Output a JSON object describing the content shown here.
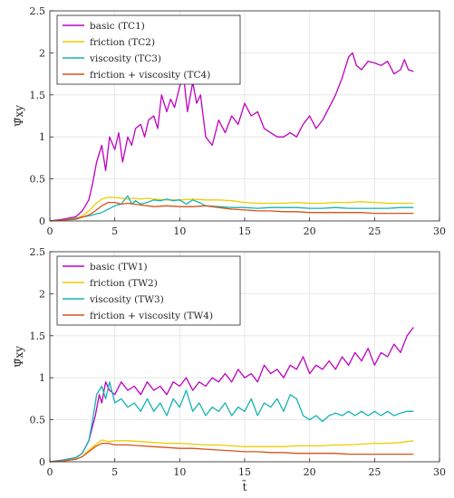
{
  "colors": {
    "basic": "#bf00bf",
    "friction": "#eecc00",
    "viscosity": "#14b3b3",
    "friction_viscosity": "#d85218",
    "grid": "#e3e3e3",
    "axes": "#262626"
  },
  "chart_data": [
    {
      "type": "line",
      "xlabel": "",
      "ylabel": "Ψ̃xy",
      "xlim": [
        0,
        30
      ],
      "ylim": [
        0,
        2.5
      ],
      "xticks": [
        "0",
        "5",
        "10",
        "15",
        "20",
        "25",
        "30"
      ],
      "yticks": [
        "0",
        "0.5",
        "1",
        "1.5",
        "2",
        "2.5"
      ],
      "grid": true,
      "legend_position": "top-left",
      "series": [
        {
          "name": "basic (TC1)",
          "color_key": "basic",
          "x": [
            0,
            1,
            2,
            2.5,
            3,
            3.3,
            3.6,
            4,
            4.3,
            4.6,
            5,
            5.3,
            5.6,
            6,
            6.3,
            6.6,
            7,
            7.3,
            7.6,
            8,
            8.3,
            8.6,
            9,
            9.3,
            9.6,
            10,
            10.3,
            10.6,
            11,
            11.3,
            11.6,
            12,
            12.5,
            13,
            13.5,
            14,
            14.5,
            15,
            15.5,
            16,
            16.5,
            17,
            17.5,
            18,
            18.5,
            19,
            19.5,
            20,
            20.5,
            21,
            21.5,
            22,
            22.5,
            23,
            23.3,
            23.6,
            24,
            24.5,
            25,
            25.5,
            26,
            26.5,
            27,
            27.3,
            27.6,
            28
          ],
          "values": [
            0,
            0.02,
            0.05,
            0.12,
            0.25,
            0.45,
            0.7,
            0.9,
            0.6,
            1.0,
            0.85,
            1.05,
            0.7,
            1.0,
            0.9,
            1.1,
            1.15,
            1.0,
            1.2,
            1.25,
            1.1,
            1.5,
            1.3,
            1.45,
            1.35,
            1.6,
            1.72,
            1.3,
            1.65,
            1.4,
            1.5,
            1.0,
            0.9,
            1.2,
            1.05,
            1.25,
            1.15,
            1.4,
            1.25,
            1.3,
            1.1,
            1.05,
            1.0,
            1.0,
            1.05,
            1.0,
            1.15,
            1.25,
            1.1,
            1.2,
            1.35,
            1.5,
            1.7,
            1.95,
            2.0,
            1.85,
            1.8,
            1.9,
            1.88,
            1.85,
            1.9,
            1.75,
            1.8,
            1.92,
            1.8,
            1.78
          ]
        },
        {
          "name": "friction (TC2)",
          "color_key": "friction",
          "x": [
            0,
            1,
            2,
            2.5,
            3,
            3.5,
            4,
            4.5,
            5,
            5.5,
            6,
            6.5,
            7,
            7.5,
            8,
            9,
            10,
            11,
            12,
            13,
            14,
            15,
            16,
            17,
            18,
            19,
            20,
            21,
            22,
            23,
            24,
            25,
            26,
            27,
            28
          ],
          "values": [
            0,
            0.01,
            0.03,
            0.06,
            0.12,
            0.2,
            0.26,
            0.28,
            0.28,
            0.27,
            0.26,
            0.27,
            0.26,
            0.27,
            0.26,
            0.25,
            0.25,
            0.26,
            0.25,
            0.25,
            0.24,
            0.22,
            0.21,
            0.21,
            0.21,
            0.22,
            0.21,
            0.21,
            0.22,
            0.22,
            0.23,
            0.22,
            0.21,
            0.21,
            0.21
          ]
        },
        {
          "name": "viscosity (TC3)",
          "color_key": "viscosity",
          "x": [
            0,
            1,
            2,
            3,
            4,
            5,
            5.5,
            6,
            6.3,
            6.6,
            7,
            7.5,
            8,
            8.5,
            9,
            9.5,
            10,
            10.5,
            11,
            11.5,
            12,
            13,
            14,
            15,
            16,
            17,
            18,
            19,
            20,
            21,
            22,
            23,
            24,
            25,
            26,
            27,
            28
          ],
          "values": [
            0,
            0.01,
            0.03,
            0.06,
            0.1,
            0.18,
            0.2,
            0.3,
            0.2,
            0.24,
            0.2,
            0.22,
            0.25,
            0.24,
            0.26,
            0.24,
            0.25,
            0.2,
            0.25,
            0.22,
            0.18,
            0.17,
            0.16,
            0.16,
            0.15,
            0.16,
            0.16,
            0.16,
            0.15,
            0.15,
            0.16,
            0.15,
            0.15,
            0.15,
            0.15,
            0.16,
            0.16
          ]
        },
        {
          "name": "friction + viscosity (TC4)",
          "color_key": "friction_viscosity",
          "x": [
            0,
            1,
            2,
            3,
            3.5,
            4,
            4.5,
            5,
            5.5,
            6,
            7,
            8,
            9,
            10,
            11,
            12,
            13,
            14,
            15,
            16,
            17,
            18,
            19,
            20,
            21,
            22,
            23,
            24,
            25,
            26,
            27,
            28
          ],
          "values": [
            0,
            0.01,
            0.02,
            0.07,
            0.12,
            0.18,
            0.22,
            0.22,
            0.2,
            0.21,
            0.19,
            0.17,
            0.18,
            0.17,
            0.17,
            0.18,
            0.16,
            0.14,
            0.13,
            0.12,
            0.12,
            0.11,
            0.11,
            0.1,
            0.1,
            0.1,
            0.1,
            0.1,
            0.09,
            0.09,
            0.09,
            0.09
          ]
        }
      ]
    },
    {
      "type": "line",
      "xlabel": "t̃",
      "ylabel": "Ψ̃xy",
      "xlim": [
        0,
        30
      ],
      "ylim": [
        0,
        2.5
      ],
      "xticks": [
        "0",
        "5",
        "10",
        "15",
        "20",
        "25",
        "30"
      ],
      "yticks": [
        "0",
        "0.5",
        "1",
        "1.5",
        "2",
        "2.5"
      ],
      "grid": true,
      "legend_position": "top-left",
      "series": [
        {
          "name": "basic (TW1)",
          "color_key": "basic",
          "x": [
            0,
            1,
            2,
            2.5,
            3,
            3.5,
            3.8,
            4,
            4.3,
            4.6,
            5,
            5.5,
            6,
            6.5,
            7,
            7.5,
            8,
            8.5,
            9,
            9.5,
            10,
            10.5,
            11,
            11.5,
            12,
            12.5,
            13,
            13.5,
            14,
            14.5,
            15,
            15.5,
            16,
            16.5,
            17,
            17.5,
            18,
            18.5,
            19,
            19.5,
            20,
            20.5,
            21,
            21.5,
            22,
            22.5,
            23,
            23.5,
            24,
            24.5,
            25,
            25.5,
            26,
            26.5,
            27,
            27.5,
            28
          ],
          "values": [
            0,
            0.02,
            0.05,
            0.1,
            0.25,
            0.55,
            0.8,
            0.7,
            0.95,
            0.85,
            0.8,
            0.95,
            0.85,
            0.9,
            0.8,
            0.95,
            0.85,
            0.9,
            0.8,
            0.95,
            0.9,
            1.0,
            0.85,
            0.95,
            0.9,
            1.0,
            0.95,
            1.05,
            0.95,
            1.1,
            1.0,
            1.05,
            0.95,
            1.15,
            1.05,
            1.1,
            1.0,
            1.15,
            1.1,
            1.25,
            1.05,
            1.15,
            1.1,
            1.2,
            1.1,
            1.25,
            1.15,
            1.3,
            1.2,
            1.35,
            1.15,
            1.3,
            1.25,
            1.4,
            1.3,
            1.5,
            1.6
          ]
        },
        {
          "name": "friction (TW2)",
          "color_key": "friction",
          "x": [
            0,
            1,
            2,
            2.5,
            3,
            3.5,
            4,
            4.5,
            5,
            6,
            7,
            8,
            9,
            10,
            11,
            12,
            13,
            14,
            15,
            16,
            17,
            18,
            19,
            20,
            21,
            22,
            23,
            24,
            25,
            26,
            27,
            28
          ],
          "values": [
            0,
            0.01,
            0.03,
            0.06,
            0.14,
            0.2,
            0.26,
            0.24,
            0.25,
            0.25,
            0.24,
            0.23,
            0.22,
            0.22,
            0.21,
            0.2,
            0.2,
            0.19,
            0.18,
            0.18,
            0.18,
            0.18,
            0.19,
            0.19,
            0.19,
            0.2,
            0.2,
            0.21,
            0.22,
            0.22,
            0.23,
            0.25
          ]
        },
        {
          "name": "viscosity (TW3)",
          "color_key": "viscosity",
          "x": [
            0,
            1,
            2,
            2.5,
            3,
            3.3,
            3.6,
            4,
            4.3,
            4.6,
            5,
            5.5,
            6,
            6.5,
            7,
            7.5,
            8,
            8.5,
            9,
            9.5,
            10,
            10.5,
            11,
            11.5,
            12,
            12.5,
            13,
            13.5,
            14,
            14.5,
            15,
            15.5,
            16,
            16.5,
            17,
            17.5,
            18,
            18.5,
            19,
            19.5,
            20,
            20.5,
            21,
            21.5,
            22,
            22.5,
            23,
            23.5,
            24,
            24.5,
            25,
            25.5,
            26,
            26.5,
            27,
            27.5,
            28
          ],
          "values": [
            0,
            0.02,
            0.05,
            0.1,
            0.25,
            0.5,
            0.8,
            0.9,
            0.75,
            0.95,
            0.7,
            0.75,
            0.65,
            0.7,
            0.6,
            0.75,
            0.6,
            0.7,
            0.55,
            0.75,
            0.65,
            0.85,
            0.6,
            0.7,
            0.55,
            0.65,
            0.6,
            0.7,
            0.55,
            0.65,
            0.6,
            0.75,
            0.55,
            0.7,
            0.65,
            0.75,
            0.6,
            0.8,
            0.75,
            0.55,
            0.5,
            0.55,
            0.48,
            0.55,
            0.58,
            0.55,
            0.6,
            0.55,
            0.6,
            0.55,
            0.6,
            0.55,
            0.6,
            0.55,
            0.58,
            0.6,
            0.6
          ]
        },
        {
          "name": "friction + viscosity (TW4)",
          "color_key": "friction_viscosity",
          "x": [
            0,
            1,
            2,
            2.5,
            3,
            3.5,
            4,
            4.5,
            5,
            6,
            7,
            8,
            9,
            10,
            11,
            12,
            13,
            14,
            15,
            16,
            17,
            18,
            19,
            20,
            21,
            22,
            23,
            24,
            25,
            26,
            27,
            28
          ],
          "values": [
            0,
            0.01,
            0.03,
            0.06,
            0.12,
            0.18,
            0.22,
            0.22,
            0.2,
            0.2,
            0.19,
            0.18,
            0.17,
            0.16,
            0.16,
            0.15,
            0.14,
            0.13,
            0.12,
            0.12,
            0.11,
            0.11,
            0.1,
            0.1,
            0.1,
            0.1,
            0.09,
            0.09,
            0.09,
            0.09,
            0.09,
            0.09
          ]
        }
      ]
    }
  ]
}
